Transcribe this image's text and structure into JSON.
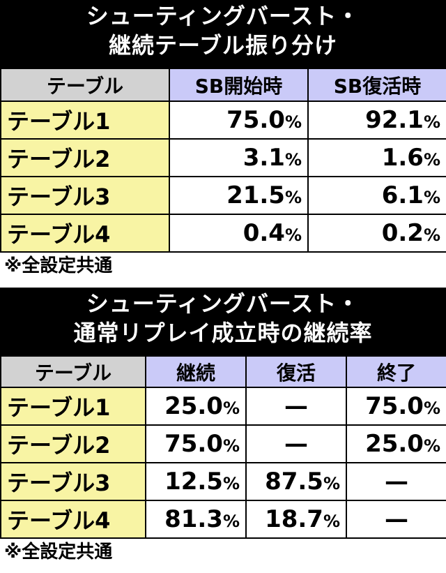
{
  "table1": {
    "title_line1": "シューティングバースト・",
    "title_line2": "継続テーブル振り分け",
    "header_label": "テーブル",
    "columns": [
      "SB開始時",
      "SB復活時"
    ],
    "rows": [
      {
        "label": "テーブル1",
        "values": [
          "75.0",
          "92.1"
        ]
      },
      {
        "label": "テーブル2",
        "values": [
          "3.1",
          "1.6"
        ]
      },
      {
        "label": "テーブル3",
        "values": [
          "21.5",
          "6.1"
        ]
      },
      {
        "label": "テーブル4",
        "values": [
          "0.4",
          "0.2"
        ]
      }
    ],
    "note": "※全設定共通"
  },
  "table2": {
    "title_line1": "シューティングバースト・",
    "title_line2": "通常リプレイ成立時の継続率",
    "header_label": "テーブル",
    "columns": [
      "継続",
      "復活",
      "終了"
    ],
    "rows": [
      {
        "label": "テーブル1",
        "values": [
          "25.0",
          "—",
          "75.0"
        ]
      },
      {
        "label": "テーブル2",
        "values": [
          "75.0",
          "—",
          "25.0"
        ]
      },
      {
        "label": "テーブル3",
        "values": [
          "12.5",
          "87.5",
          "—"
        ]
      },
      {
        "label": "テーブル4",
        "values": [
          "81.3",
          "18.7",
          "—"
        ]
      }
    ],
    "note": "※全設定共通"
  },
  "percent_sign": "%",
  "colors": {
    "title_bg": "#000000",
    "header_label_bg": "#d2d2d2",
    "header_col_bg": "#cacaf8",
    "row_label_bg": "#f8f4a4"
  }
}
